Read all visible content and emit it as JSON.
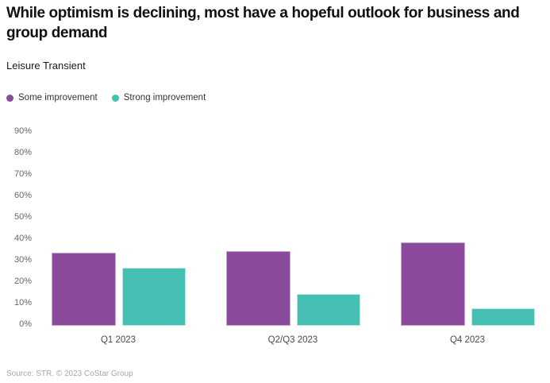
{
  "header": {
    "title": "While optimism is declining, most have a hopeful outlook for business and group demand",
    "subtitle": "Leisure Transient"
  },
  "chart_data": {
    "type": "bar",
    "categories": [
      "Q1 2023",
      "Q2/Q3 2023",
      "Q4 2023"
    ],
    "series": [
      {
        "name": "Some improvement",
        "color": "#8B4A9C",
        "border_color": "#C9A6D3",
        "values": [
          34,
          35,
          39
        ]
      },
      {
        "name": "Strong improvement",
        "color": "#44BFB2",
        "border_color": "#BCE8E3",
        "values": [
          27,
          15,
          8
        ]
      }
    ],
    "y_ticks": [
      "90%",
      "80%",
      "70%",
      "60%",
      "50%",
      "40%",
      "30%",
      "20%",
      "10%",
      "0%"
    ],
    "ylim": [
      0,
      90
    ],
    "unit": "%",
    "grid": false,
    "legend_position": "top-left"
  },
  "footer": {
    "source": "Source: STR. © 2023 CoStar Group"
  }
}
